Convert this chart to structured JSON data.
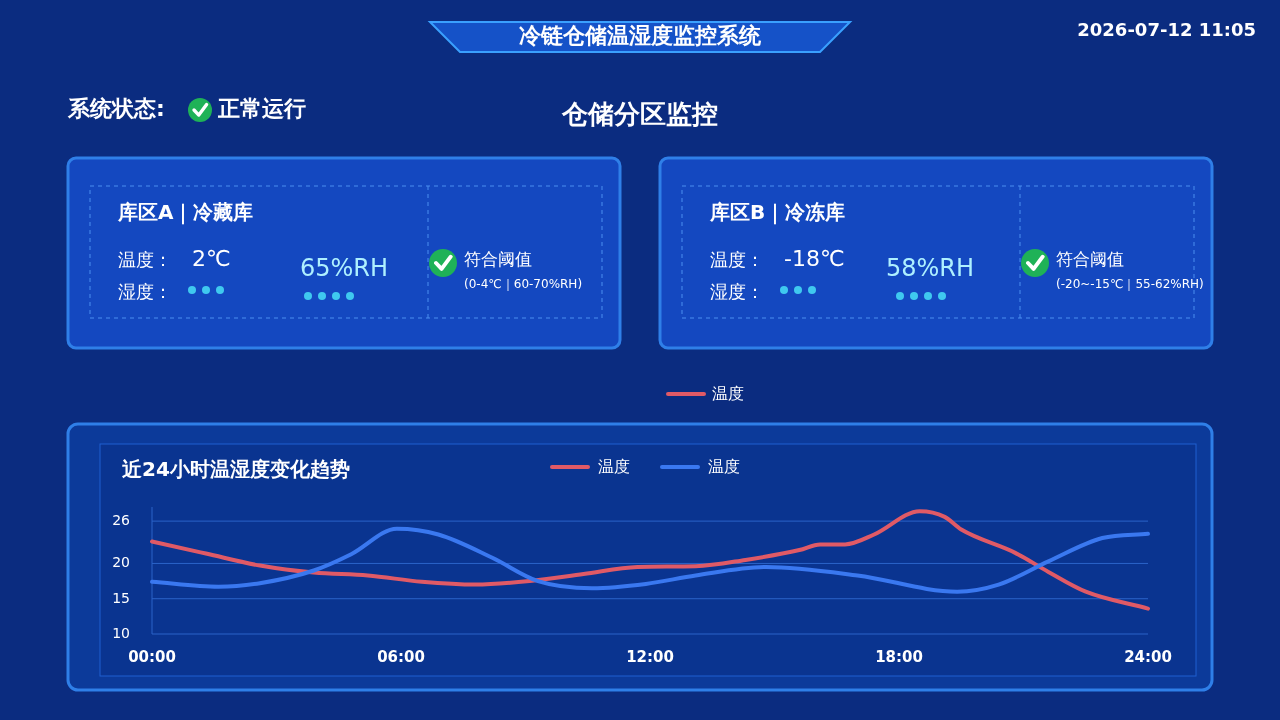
{
  "chart_data": [
    {
      "type": "other",
      "title": "冷链仓储温湿度监控系统",
      "annotations": [
        "2026-07-12  11:05",
        "系统状态:",
        "正常运行",
        "仓储分区监控"
      ]
    },
    {
      "type": "other",
      "title": "库区A｜冷藏库",
      "annotations": [
        "温度：",
        "2℃",
        "湿度：",
        "65%RH",
        "符合阈值",
        "(0-4℃｜60-70%RH)"
      ]
    },
    {
      "type": "other",
      "title": "库区B｜冷冻库",
      "annotations": [
        "温度：",
        "-18℃",
        "湿度：",
        "58%RH",
        "符合阈值",
        "(-20~-15℃｜55-62%RH)"
      ]
    },
    {
      "type": "line",
      "title": "近24小时温湿度变化趋势",
      "annotations": [
        "温度"
      ],
      "xlim": [
        0,
        24
      ],
      "xticks": [
        {
          "value": 0,
          "label": "00:00"
        },
        {
          "value": 6,
          "label": "06:00"
        },
        {
          "value": 12,
          "label": "12:00"
        },
        {
          "value": 18,
          "label": "18:00"
        },
        {
          "value": 24,
          "label": "24:00"
        }
      ],
      "ylim": [
        10,
        28
      ],
      "yticks": [
        10,
        15,
        20,
        26
      ],
      "grid": "y",
      "legend": "top",
      "marker": "none",
      "line_style": "solid",
      "series": [
        {
          "name": "温度",
          "color": "#e05a66",
          "x": [
            0,
            1.3,
            2.6,
            3.9,
            5.2,
            6.5,
            7.8,
            9.1,
            10.4,
            11.7,
            13.1,
            14.3,
            15.6,
            16.1,
            16.7,
            17.4,
            18.5,
            19.1,
            19.5,
            20.8,
            21.6,
            22.5,
            24
          ],
          "values": [
            23.1,
            21.4,
            19.7,
            18.7,
            18.3,
            17.4,
            17.0,
            17.5,
            18.5,
            19.5,
            19.6,
            20.5,
            21.9,
            22.7,
            22.7,
            24.1,
            27.4,
            26.6,
            24.8,
            21.5,
            18.8,
            16.0,
            13.6
          ]
        },
        {
          "name": "温度",
          "color": "#3a78f0",
          "x": [
            0,
            1.6,
            2.6,
            3.9,
            4.8,
            5.9,
            6.9,
            8.2,
            9.3,
            10.6,
            11.9,
            13.1,
            14.8,
            17.0,
            19.4,
            20.4,
            21.6,
            22.9,
            24
          ],
          "values": [
            17.4,
            16.7,
            17.2,
            19.0,
            21.3,
            24.9,
            24.1,
            20.8,
            17.5,
            16.5,
            17.1,
            18.3,
            19.5,
            18.3,
            16.0,
            17.0,
            20.3,
            23.6,
            24.2
          ]
        }
      ]
    }
  ]
}
